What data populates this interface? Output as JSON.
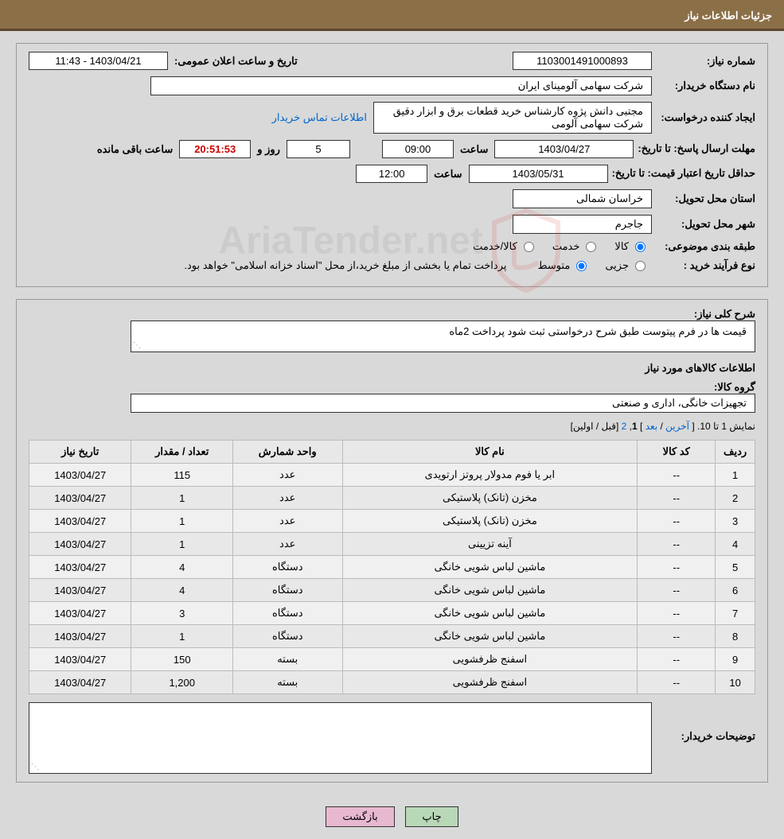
{
  "header": {
    "title": "جزئیات اطلاعات نیاز"
  },
  "info": {
    "need_number_label": "شماره نیاز:",
    "need_number": "1103001491000893",
    "announce_date_label": "تاریخ و ساعت اعلان عمومی:",
    "announce_date": "1403/04/21 - 11:43",
    "buyer_org_label": "نام دستگاه خریدار:",
    "buyer_org": "شرکت سهامی آلومینای ایران",
    "requester_label": "ایجاد کننده درخواست:",
    "requester": "مجتبی دانش پژوه کارشناس خرید قطعات برق و ابزار دقیق شرکت سهامی آلومی",
    "contact_link": "اطلاعات تماس خریدار",
    "deadline_label": "مهلت ارسال پاسخ: تا تاریخ:",
    "deadline_date": "1403/04/27",
    "time_label": "ساعت",
    "deadline_time": "09:00",
    "days_count": "5",
    "days_label": "روز و",
    "timer": "20:51:53",
    "remaining_label": "ساعت باقی مانده",
    "price_validity_label": "حداقل تاریخ اعتبار قیمت: تا تاریخ:",
    "price_validity_date": "1403/05/31",
    "price_validity_time": "12:00",
    "delivery_province_label": "استان محل تحویل:",
    "delivery_province": "خراسان شمالی",
    "delivery_city_label": "شهر محل تحویل:",
    "delivery_city": "جاجرم",
    "category_label": "طبقه بندی موضوعی:",
    "cat_goods": "کالا",
    "cat_service": "خدمت",
    "cat_goods_service": "کالا/خدمت",
    "process_type_label": "نوع فرآیند خرید :",
    "proc_partial": "جزیی",
    "proc_medium": "متوسط",
    "process_note": "پرداخت تمام یا بخشی از مبلغ خرید،از محل \"اسناد خزانه اسلامی\" خواهد بود."
  },
  "description": {
    "overall_label": "شرح کلی نیاز:",
    "overall_text": "قیمت ها در فرم پیتوست طبق شرح درخواستی ثبت شود پرداخت 2ماه",
    "goods_info_title": "اطلاعات کالاهای مورد نیاز",
    "goods_group_label": "گروه کالا:",
    "goods_group": "تجهیزات خانگی، اداری و صنعتی"
  },
  "pager": {
    "prefix": "نمایش 1 تا 10. [ ",
    "last": "آخرین",
    "sep1": " / ",
    "next": "بعد",
    "sep2": " ] ",
    "current": "1",
    "comma": ", ",
    "page2": "2",
    "sep3": " [",
    "prev": "قبل",
    "sep4": " / ",
    "first": "اولین",
    "suffix": "]"
  },
  "table": {
    "headers": {
      "row": "ردیف",
      "code": "کد کالا",
      "name": "نام کالا",
      "unit": "واحد شمارش",
      "qty": "تعداد / مقدار",
      "date": "تاریخ نیاز"
    },
    "rows": [
      {
        "n": "1",
        "code": "--",
        "name": "ابر یا فوم مدولار پروتز ارتویدی",
        "unit": "عدد",
        "qty": "115",
        "date": "1403/04/27"
      },
      {
        "n": "2",
        "code": "--",
        "name": "مخزن (تانک) پلاستیکی",
        "unit": "عدد",
        "qty": "1",
        "date": "1403/04/27"
      },
      {
        "n": "3",
        "code": "--",
        "name": "مخزن (تانک) پلاستیکی",
        "unit": "عدد",
        "qty": "1",
        "date": "1403/04/27"
      },
      {
        "n": "4",
        "code": "--",
        "name": "آینه تزیینی",
        "unit": "عدد",
        "qty": "1",
        "date": "1403/04/27"
      },
      {
        "n": "5",
        "code": "--",
        "name": "ماشین لباس شویی خانگی",
        "unit": "دستگاه",
        "qty": "4",
        "date": "1403/04/27"
      },
      {
        "n": "6",
        "code": "--",
        "name": "ماشین لباس شویی خانگی",
        "unit": "دستگاه",
        "qty": "4",
        "date": "1403/04/27"
      },
      {
        "n": "7",
        "code": "--",
        "name": "ماشین لباس شویی خانگی",
        "unit": "دستگاه",
        "qty": "3",
        "date": "1403/04/27"
      },
      {
        "n": "8",
        "code": "--",
        "name": "ماشین لباس شویی خانگی",
        "unit": "دستگاه",
        "qty": "1",
        "date": "1403/04/27"
      },
      {
        "n": "9",
        "code": "--",
        "name": "اسفنج ظرفشویی",
        "unit": "بسته",
        "qty": "150",
        "date": "1403/04/27"
      },
      {
        "n": "10",
        "code": "--",
        "name": "اسفنج ظرفشویی",
        "unit": "بسته",
        "qty": "1,200",
        "date": "1403/04/27"
      }
    ]
  },
  "buyer_notes": {
    "label": "توضیحات خریدار:"
  },
  "buttons": {
    "print": "چاپ",
    "back": "بازگشت"
  },
  "watermark": {
    "text": "AriaTender.net"
  }
}
